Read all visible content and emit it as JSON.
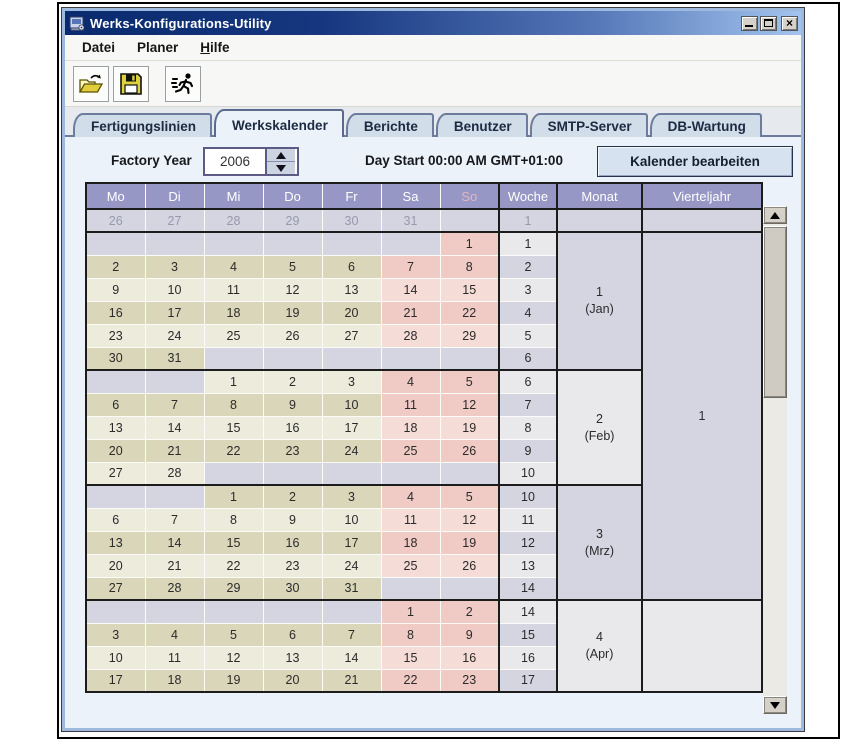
{
  "window": {
    "title": "Werks-Konfigurations-Utility",
    "controls": [
      "minimize",
      "maximize",
      "close"
    ]
  },
  "menu": {
    "items": [
      {
        "label": "Datei",
        "mnemonic": ""
      },
      {
        "label": "Planer",
        "mnemonic": ""
      },
      {
        "label": "Hilfe",
        "mnemonic": "H"
      }
    ]
  },
  "toolbar": {
    "buttons": [
      {
        "icon": "open-folder-icon"
      },
      {
        "icon": "save-floppy-icon"
      },
      {
        "icon": "run-process-icon"
      }
    ]
  },
  "tabs": {
    "active": 1,
    "items": [
      {
        "label": "Fertigungslinien"
      },
      {
        "label": "Werkskalender"
      },
      {
        "label": "Berichte"
      },
      {
        "label": "Benutzer"
      },
      {
        "label": "SMTP-Server"
      },
      {
        "label": "DB-Wartung"
      }
    ]
  },
  "controls": {
    "factory_year_label": "Factory Year",
    "factory_year_value": "2006",
    "day_start_text": "Day Start 00:00 AM GMT+01:00",
    "edit_button_label": "Kalender bearbeiten"
  },
  "colors": {
    "header_bg": "#9697C5",
    "weekday_tan": "#DAD6B9",
    "weekday_light": "#ECEBDC",
    "weekend_dark_pink": "#F0CAC4",
    "weekend_light_pink": "#F5DCD7",
    "empty_lavender": "#D5D5E2",
    "titlebar_left": "#0A2A6E",
    "titlebar_right": "#A3C4EE"
  },
  "calendar": {
    "columns": [
      "Mo",
      "Di",
      "Mi",
      "Do",
      "Fr",
      "Sa",
      "So",
      "Woche",
      "Monat",
      "Vierteljahr"
    ],
    "prev_year_row": {
      "days": [
        "26",
        "27",
        "28",
        "29",
        "30",
        "31",
        ""
      ],
      "week": "1"
    },
    "rows": [
      {
        "days": [
          "",
          "",
          "",
          "",
          "",
          "",
          "1"
        ],
        "week": "1",
        "tone": "light",
        "wkend": "dark"
      },
      {
        "days": [
          "2",
          "3",
          "4",
          "5",
          "6",
          "7",
          "8"
        ],
        "week": "2",
        "tone": "tan",
        "wkend": "dark"
      },
      {
        "days": [
          "9",
          "10",
          "11",
          "12",
          "13",
          "14",
          "15"
        ],
        "week": "3",
        "tone": "light",
        "wkend": "light"
      },
      {
        "days": [
          "16",
          "17",
          "18",
          "19",
          "20",
          "21",
          "22"
        ],
        "week": "4",
        "tone": "tan",
        "wkend": "dark"
      },
      {
        "days": [
          "23",
          "24",
          "25",
          "26",
          "27",
          "28",
          "29"
        ],
        "week": "5",
        "tone": "light",
        "wkend": "light"
      },
      {
        "days": [
          "30",
          "31",
          "",
          "",
          "",
          "",
          ""
        ],
        "week": "6",
        "tone": "tan",
        "wkend": "dark"
      },
      {
        "days": [
          "",
          "",
          "1",
          "2",
          "3",
          "4",
          "5"
        ],
        "week": "6",
        "tone": "light",
        "wkend": "dark"
      },
      {
        "days": [
          "6",
          "7",
          "8",
          "9",
          "10",
          "11",
          "12"
        ],
        "week": "7",
        "tone": "tan",
        "wkend": "dark"
      },
      {
        "days": [
          "13",
          "14",
          "15",
          "16",
          "17",
          "18",
          "19"
        ],
        "week": "8",
        "tone": "light",
        "wkend": "light"
      },
      {
        "days": [
          "20",
          "21",
          "22",
          "23",
          "24",
          "25",
          "26"
        ],
        "week": "9",
        "tone": "tan",
        "wkend": "dark"
      },
      {
        "days": [
          "27",
          "28",
          "",
          "",
          "",
          "",
          ""
        ],
        "week": "10",
        "tone": "light",
        "wkend": "light"
      },
      {
        "days": [
          "",
          "",
          "1",
          "2",
          "3",
          "4",
          "5"
        ],
        "week": "10",
        "tone": "tan",
        "wkend": "dark"
      },
      {
        "days": [
          "6",
          "7",
          "8",
          "9",
          "10",
          "11",
          "12"
        ],
        "week": "11",
        "tone": "light",
        "wkend": "light"
      },
      {
        "days": [
          "13",
          "14",
          "15",
          "16",
          "17",
          "18",
          "19"
        ],
        "week": "12",
        "tone": "tan",
        "wkend": "dark"
      },
      {
        "days": [
          "20",
          "21",
          "22",
          "23",
          "24",
          "25",
          "26"
        ],
        "week": "13",
        "tone": "light",
        "wkend": "light"
      },
      {
        "days": [
          "27",
          "28",
          "29",
          "30",
          "31",
          "",
          ""
        ],
        "week": "14",
        "tone": "tan",
        "wkend": "dark"
      },
      {
        "days": [
          "",
          "",
          "",
          "",
          "",
          "1",
          "2"
        ],
        "week": "14",
        "tone": "light",
        "wkend": "dark"
      },
      {
        "days": [
          "3",
          "4",
          "5",
          "6",
          "7",
          "8",
          "9"
        ],
        "week": "15",
        "tone": "tan",
        "wkend": "dark"
      },
      {
        "days": [
          "10",
          "11",
          "12",
          "13",
          "14",
          "15",
          "16"
        ],
        "week": "16",
        "tone": "light",
        "wkend": "light"
      },
      {
        "days": [
          "17",
          "18",
          "19",
          "20",
          "21",
          "22",
          "23"
        ],
        "week": "17",
        "tone": "tan",
        "wkend": "dark"
      }
    ],
    "months": [
      {
        "start": 0,
        "span": 6,
        "num": "1",
        "name": "(Jan)",
        "tone": "lav"
      },
      {
        "start": 6,
        "span": 5,
        "num": "2",
        "name": "(Feb)",
        "tone": "light"
      },
      {
        "start": 11,
        "span": 5,
        "num": "3",
        "name": "(Mrz)",
        "tone": "lav"
      },
      {
        "start": 16,
        "span": 4,
        "num": "4",
        "name": "(Apr)",
        "tone": "light"
      }
    ],
    "quarters": [
      {
        "start": 0,
        "span": 16,
        "label": "1",
        "tone": "lav"
      },
      {
        "start": 16,
        "span": 4,
        "label": "",
        "tone": "light"
      }
    ]
  }
}
